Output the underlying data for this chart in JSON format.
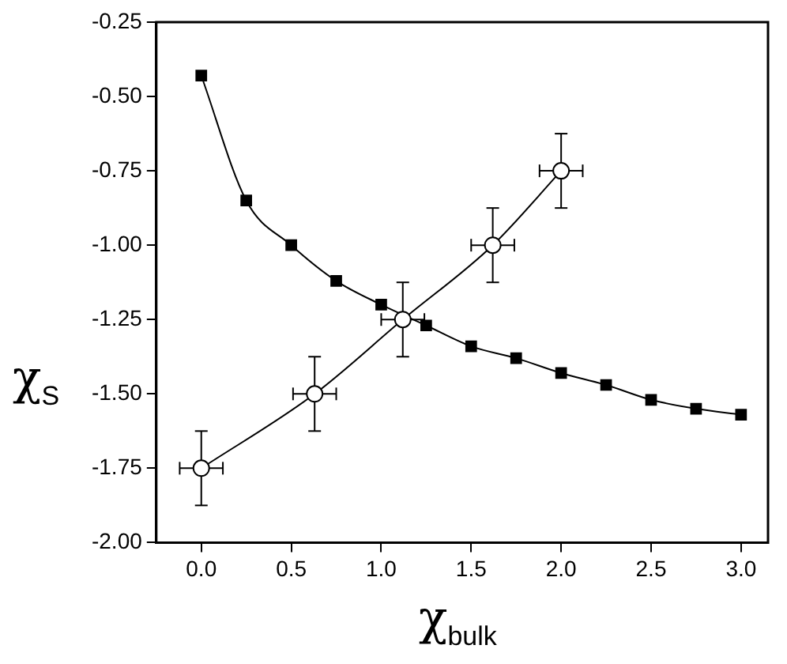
{
  "chart_data": {
    "type": "line",
    "xlabel": "χ$_{bulk}$",
    "ylabel": "χ$_{S}$",
    "xlim": [
      -0.25,
      3.15
    ],
    "ylim": [
      -2.0,
      -0.25
    ],
    "xticks": [
      {
        "value": 0,
        "label": "0.0"
      },
      {
        "value": 0.5,
        "label": "0.5"
      },
      {
        "value": 1,
        "label": "1.0"
      },
      {
        "value": 1.5,
        "label": "1.5"
      },
      {
        "value": 2,
        "label": "2.0"
      },
      {
        "value": 2.5,
        "label": "2.5"
      },
      {
        "value": 3,
        "label": "3.0"
      }
    ],
    "yticks": [
      {
        "value": -2,
        "label": "-2.00"
      },
      {
        "value": -1.75,
        "label": "-1.75"
      },
      {
        "value": -1.5,
        "label": "-1.50"
      },
      {
        "value": -1.25,
        "label": "-1.25"
      },
      {
        "value": -1,
        "label": "-1.00"
      },
      {
        "value": -0.75,
        "label": "-0.75"
      },
      {
        "value": -0.5,
        "label": "-0.50"
      },
      {
        "value": -0.25,
        "label": "-0.25"
      }
    ],
    "grid": false,
    "legend": false,
    "series": [
      {
        "color": "#000000",
        "marker": "square",
        "x": [
          0,
          0.25,
          0.5,
          0.75,
          1,
          1.25,
          1.5,
          1.75,
          2,
          2.25,
          2.5,
          2.75,
          3
        ],
        "values": [
          -0.43,
          -0.85,
          -1.0,
          -1.12,
          -1.2,
          -1.27,
          -1.34,
          -1.38,
          -1.43,
          -1.47,
          -1.52,
          -1.55,
          -1.57
        ]
      },
      {
        "color": "#000000",
        "marker": "circle",
        "x": [
          0,
          0.63,
          1.12,
          1.62,
          2.0
        ],
        "values": [
          -1.75,
          -1.5,
          -1.25,
          -1.0,
          -0.75
        ],
        "errors": [
          0.125,
          0.125,
          0.125,
          0.125,
          0.125
        ],
        "xerrors": [
          0.12,
          0.12,
          0.12,
          0.12,
          0.12
        ]
      }
    ]
  }
}
